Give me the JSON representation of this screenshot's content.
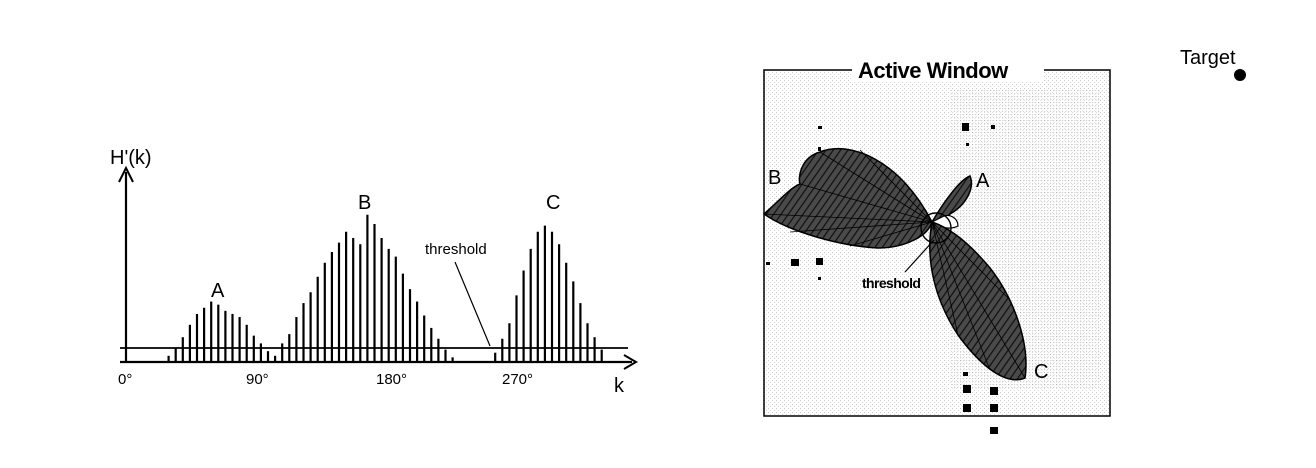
{
  "histogram": {
    "y_axis_label": "H'(k)",
    "x_axis_label": "k",
    "x_ticks": [
      "0°",
      "90°",
      "180°",
      "270°"
    ],
    "threshold_label": "threshold",
    "peak_labels": [
      "A",
      "B",
      "C"
    ]
  },
  "chart_data": {
    "type": "bar",
    "title": "",
    "xlabel": "k",
    "ylabel": "H'(k)",
    "x_unit": "degrees",
    "xlim": [
      0,
      360
    ],
    "ylim": [
      0,
      1
    ],
    "threshold": 0.09,
    "peaks": [
      {
        "name": "A",
        "center_deg": 62
      },
      {
        "name": "B",
        "center_deg": 174
      },
      {
        "name": "C",
        "center_deg": 298
      }
    ],
    "x": [
      30,
      35,
      40,
      45,
      50,
      55,
      60,
      65,
      70,
      75,
      80,
      85,
      90,
      95,
      100,
      105,
      110,
      115,
      120,
      125,
      130,
      135,
      140,
      145,
      150,
      155,
      160,
      165,
      170,
      175,
      180,
      185,
      190,
      195,
      200,
      205,
      210,
      215,
      220,
      225,
      230,
      235,
      240,
      245,
      250,
      255,
      260,
      265,
      270,
      275,
      280,
      285,
      290,
      295,
      300,
      305,
      310,
      315,
      320,
      325,
      330,
      335
    ],
    "values": [
      0.04,
      0.09,
      0.16,
      0.24,
      0.31,
      0.35,
      0.39,
      0.37,
      0.33,
      0.31,
      0.29,
      0.24,
      0.17,
      0.12,
      0.07,
      0.04,
      0.12,
      0.18,
      0.29,
      0.38,
      0.45,
      0.55,
      0.64,
      0.71,
      0.77,
      0.84,
      0.8,
      0.76,
      0.95,
      0.89,
      0.8,
      0.73,
      0.68,
      0.57,
      0.47,
      0.39,
      0.3,
      0.22,
      0.15,
      0.08,
      0.03,
      0.0,
      0.0,
      0.0,
      0.0,
      0.0,
      0.06,
      0.15,
      0.25,
      0.43,
      0.59,
      0.73,
      0.84,
      0.88,
      0.84,
      0.76,
      0.64,
      0.52,
      0.38,
      0.25,
      0.16,
      0.08
    ]
  },
  "window": {
    "title": "Active Window",
    "target_label": "Target",
    "threshold_label": "threshold",
    "lobe_labels": [
      "A",
      "B",
      "C"
    ]
  }
}
